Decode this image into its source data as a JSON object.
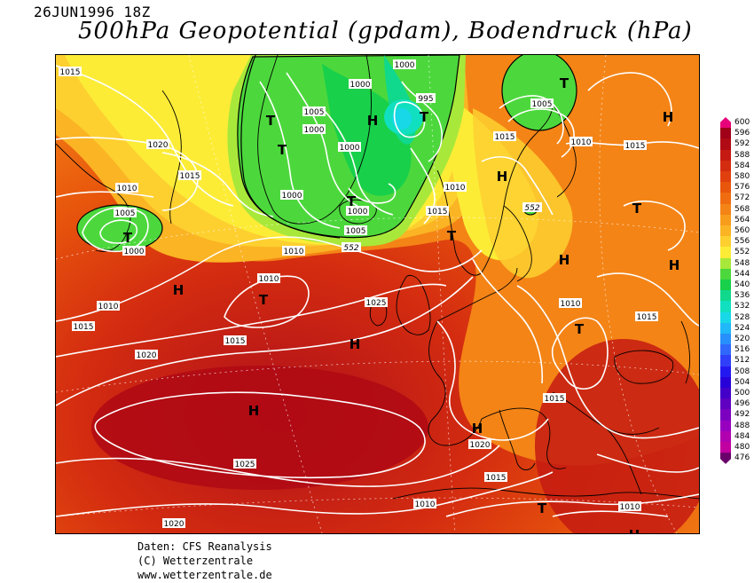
{
  "header": {
    "date": "26JUN1996 18Z",
    "title": "500hPa Geopotential (gpdam), Bodendruck (hPa)"
  },
  "footer": {
    "source": "Daten: CFS Reanalysis",
    "copyright": "(C) Wetterzentrale",
    "url": "www.wetterzentrale.de"
  },
  "colors": {
    "background": "#ffffff",
    "coast": "#000000",
    "isobar": "#ffffff"
  },
  "legend": {
    "levels": [
      {
        "value": "600",
        "color": "#e8007a"
      },
      {
        "value": "596",
        "color": "#a00018"
      },
      {
        "value": "592",
        "color": "#b00a14"
      },
      {
        "value": "588",
        "color": "#c41a12"
      },
      {
        "value": "584",
        "color": "#d42c10"
      },
      {
        "value": "580",
        "color": "#e0400e"
      },
      {
        "value": "576",
        "color": "#e8560c"
      },
      {
        "value": "572",
        "color": "#f06c10"
      },
      {
        "value": "568",
        "color": "#f48416"
      },
      {
        "value": "564",
        "color": "#f89c1c"
      },
      {
        "value": "560",
        "color": "#fbb424"
      },
      {
        "value": "556",
        "color": "#fdd030"
      },
      {
        "value": "552",
        "color": "#fcec36"
      },
      {
        "value": "548",
        "color": "#a8e83a"
      },
      {
        "value": "544",
        "color": "#4cd83c"
      },
      {
        "value": "540",
        "color": "#18d04a"
      },
      {
        "value": "536",
        "color": "#10d88c"
      },
      {
        "value": "532",
        "color": "#10e0c0"
      },
      {
        "value": "528",
        "color": "#18d8e8"
      },
      {
        "value": "524",
        "color": "#20b8f8"
      },
      {
        "value": "520",
        "color": "#2890fc"
      },
      {
        "value": "516",
        "color": "#3068fc"
      },
      {
        "value": "512",
        "color": "#3040f8"
      },
      {
        "value": "508",
        "color": "#2418f0"
      },
      {
        "value": "504",
        "color": "#2800d8"
      },
      {
        "value": "500",
        "color": "#4400c8"
      },
      {
        "value": "496",
        "color": "#6000c0"
      },
      {
        "value": "492",
        "color": "#7c00c0"
      },
      {
        "value": "488",
        "color": "#9800c0"
      },
      {
        "value": "484",
        "color": "#b000b0"
      },
      {
        "value": "480",
        "color": "#c000a0"
      },
      {
        "value": "476",
        "color": "#6a006a"
      }
    ]
  },
  "map": {
    "highs": [
      "H",
      "H",
      "H",
      "H",
      "H",
      "H",
      "H",
      "H",
      "H",
      "H"
    ],
    "lows": [
      "T",
      "T",
      "T",
      "T",
      "T",
      "T",
      "T",
      "T",
      "T",
      "T",
      "T"
    ],
    "isobar_labels": [
      "1015",
      "1020",
      "1010",
      "1005",
      "1000",
      "1015",
      "1010",
      "1010",
      "1015",
      "1025",
      "1020",
      "1025",
      "1020",
      "1015",
      "1010",
      "1015",
      "1010",
      "1015",
      "1010",
      "1010",
      "1015",
      "1020",
      "1015",
      "1005",
      "1000",
      "1005",
      "1000",
      "995",
      "1000",
      "1000",
      "1000",
      "1005",
      "1000",
      "1015",
      "1010",
      "1015",
      "1010",
      "1005",
      "1015",
      "1010",
      "1015",
      "1010",
      "1025"
    ],
    "height_labels": [
      "552",
      "552"
    ]
  }
}
